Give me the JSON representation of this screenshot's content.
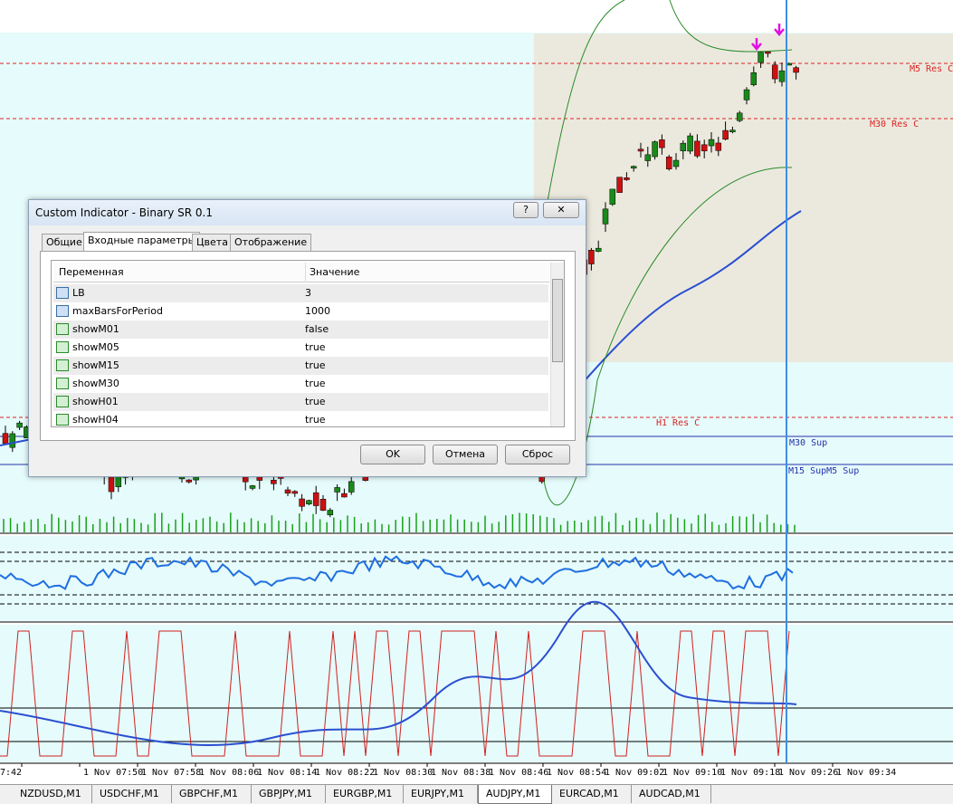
{
  "dialog": {
    "title": "Custom Indicator - Binary SR 0.1",
    "help": "?",
    "tabs": [
      "Общие",
      "Входные параметры",
      "Цвета",
      "Отображение"
    ],
    "active_tab": 1,
    "table": {
      "header": [
        "Переменная",
        "Значение"
      ],
      "rows": [
        [
          "LB",
          "3"
        ],
        [
          "maxBarsForPeriod",
          "1000"
        ],
        [
          "showM01",
          "false"
        ],
        [
          "showM05",
          "true"
        ],
        [
          "showM15",
          "true"
        ],
        [
          "showM30",
          "true"
        ],
        [
          "showH01",
          "true"
        ],
        [
          "showH04",
          "true"
        ]
      ]
    },
    "buttons": [
      "OK",
      "Отмена",
      "Сброс"
    ]
  },
  "chart": {
    "levels": [
      "M5 Res C",
      "M30 Res C",
      "H1 Res C",
      "M30 Sup",
      "M15 SupM5 Sup"
    ],
    "time_labels": [
      "7:42",
      "1 Nov 07:50",
      "1 Nov 07:58",
      "1 Nov 08:06",
      "1 Nov 08:14",
      "1 Nov 08:22",
      "1 Nov 08:30",
      "1 Nov 08:38",
      "1 Nov 08:46",
      "1 Nov 08:54",
      "1 Nov 09:02",
      "1 Nov 09:10",
      "1 Nov 09:18",
      "1 Nov 09:26",
      "1 Nov 09:34"
    ]
  },
  "symbol_tabs": [
    "NZDUSD,M1",
    "USDCHF,M1",
    "GBPCHF,M1",
    "GBPJPY,M1",
    "EURGBP,M1",
    "EURJPY,M1",
    "AUDJPY,M1",
    "EURCAD,M1",
    "AUDCAD,M1"
  ],
  "active_symbol": 6
}
